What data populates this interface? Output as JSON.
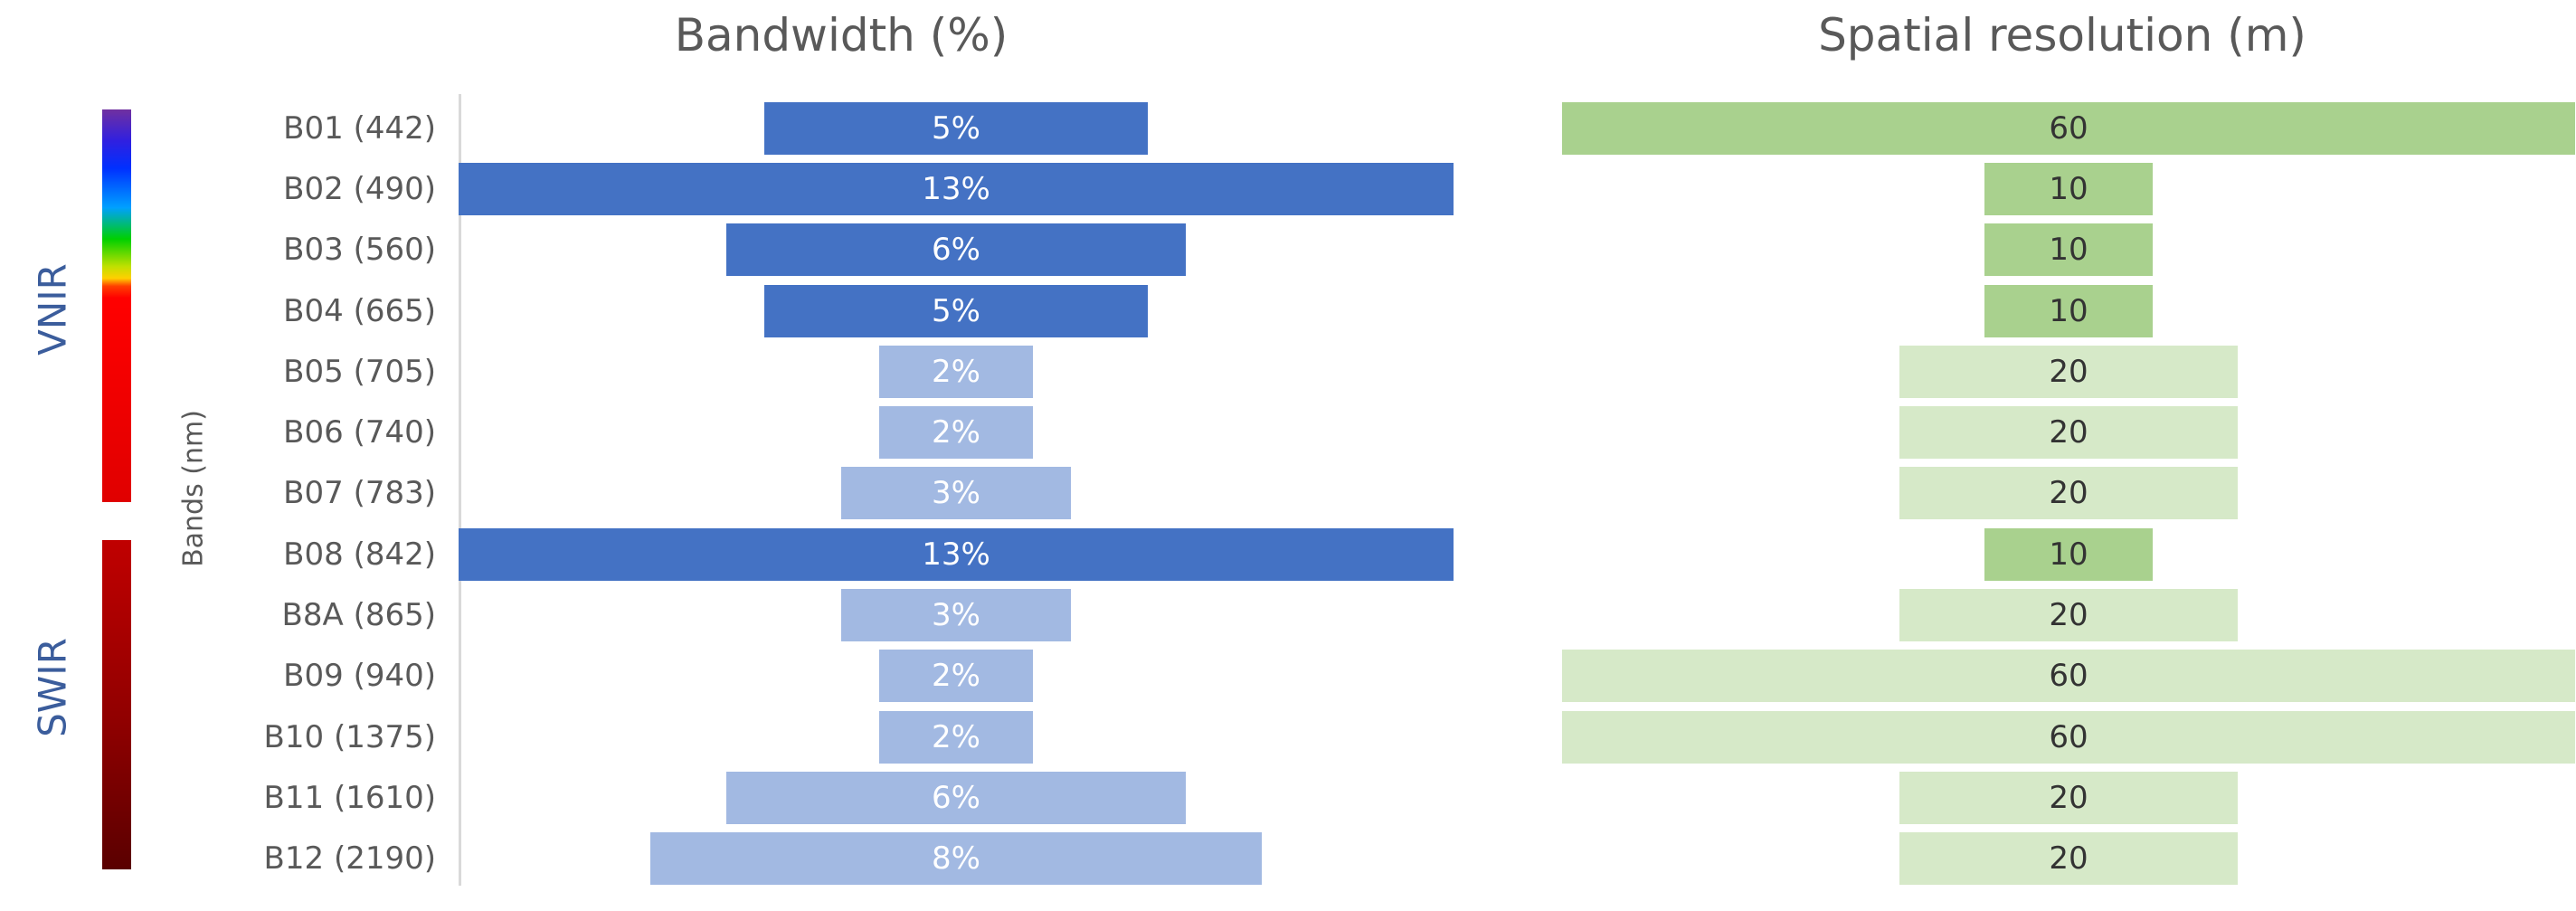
{
  "chart_data": [
    {
      "type": "bar",
      "orientation": "horizontal",
      "title": "Bandwidth (%)",
      "ylabel": "Bands (nm)",
      "categories": [
        "B01 (442)",
        "B02 (490)",
        "B03 (560)",
        "B04 (665)",
        "B05 (705)",
        "B06 (740)",
        "B07 (783)",
        "B08 (842)",
        "B8A (865)",
        "B09 (940)",
        "B10 (1375)",
        "B11 (1610)",
        "B12 (2190)"
      ],
      "values": [
        5,
        13,
        6,
        5,
        2,
        2,
        3,
        13,
        3,
        2,
        2,
        6,
        8
      ],
      "data_labels": [
        "5%",
        "13%",
        "6%",
        "5%",
        "2%",
        "2%",
        "3%",
        "13%",
        "3%",
        "2%",
        "2%",
        "6%",
        "8%"
      ],
      "highlighted": [
        true,
        true,
        true,
        true,
        false,
        false,
        false,
        true,
        false,
        false,
        false,
        false,
        false
      ],
      "colors": {
        "highlight": "#4472c4",
        "normal": "#a2b9e2"
      },
      "grid": false
    },
    {
      "type": "bar",
      "orientation": "horizontal",
      "title": "Spatial resolution (m)",
      "categories": [
        "B01 (442)",
        "B02 (490)",
        "B03 (560)",
        "B04 (665)",
        "B05 (705)",
        "B06 (740)",
        "B07 (783)",
        "B08 (842)",
        "B8A (865)",
        "B09 (940)",
        "B10 (1375)",
        "B11 (1610)",
        "B12 (2190)"
      ],
      "values": [
        60,
        10,
        10,
        10,
        20,
        20,
        20,
        10,
        20,
        60,
        60,
        20,
        20
      ],
      "data_labels": [
        "60",
        "10",
        "10",
        "10",
        "20",
        "20",
        "20",
        "10",
        "20",
        "60",
        "60",
        "20",
        "20"
      ],
      "highlighted": [
        true,
        true,
        true,
        true,
        false,
        false,
        false,
        true,
        false,
        false,
        false,
        false,
        false
      ],
      "colors": {
        "highlight": "#a9d18e",
        "normal": "#d6e9c8"
      },
      "grid": false
    }
  ],
  "groups": [
    {
      "label": "VNIR",
      "color": "#3b5d9c"
    },
    {
      "label": "SWIR",
      "color": "#3b5d9c"
    }
  ]
}
